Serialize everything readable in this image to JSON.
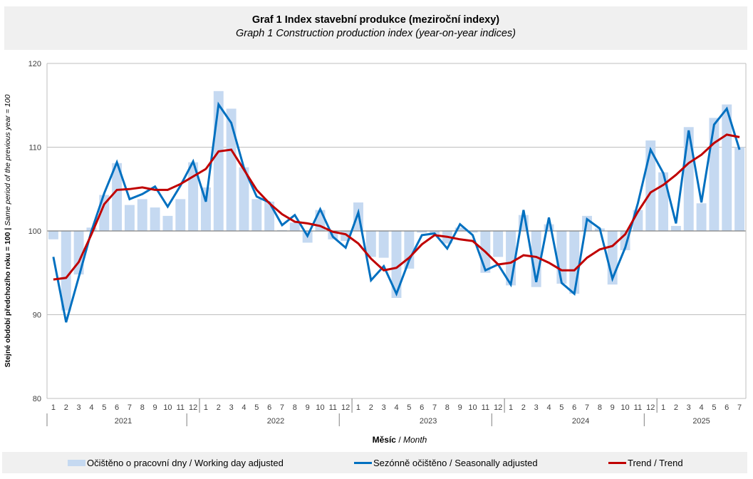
{
  "chart_data": {
    "type": "bar+line",
    "title": "Graf 1 Index stavební produkce (meziroční indexy)",
    "subtitle": "Graph 1 Construction production index (year-on-year indices)",
    "ylabel_cz": "Stejné období předchozího roku = 100 |",
    "ylabel_en": "Same period of  the previous year = 100",
    "xlabel_cz": "Měsíc",
    "xlabel_sep": " / ",
    "xlabel_en": "Month",
    "ylim": [
      80,
      120
    ],
    "yticks": [
      80,
      90,
      100,
      110,
      120
    ],
    "baseline": 100,
    "grid": true,
    "years": [
      {
        "label": "2021",
        "months": 12
      },
      {
        "label": "2022",
        "months": 12
      },
      {
        "label": "2023",
        "months": 12
      },
      {
        "label": "2024",
        "months": 12
      },
      {
        "label": "2025",
        "months": 7
      }
    ],
    "month_labels": [
      "1",
      "2",
      "3",
      "4",
      "5",
      "6",
      "7",
      "8",
      "9",
      "10",
      "11",
      "12",
      "1",
      "2",
      "3",
      "4",
      "5",
      "6",
      "7",
      "8",
      "9",
      "10",
      "11",
      "12",
      "1",
      "2",
      "3",
      "4",
      "5",
      "6",
      "7",
      "8",
      "9",
      "10",
      "11",
      "12",
      "1",
      "2",
      "3",
      "4",
      "5",
      "6",
      "7",
      "8",
      "9",
      "10",
      "11",
      "12",
      "1",
      "2",
      "3",
      "4",
      "5",
      "6",
      "7"
    ],
    "series": [
      {
        "name": "Očištěno o pracovní dny / Working day adjusted",
        "kind": "bar",
        "color": "#c5d9f1",
        "values": [
          99.0,
          90.5,
          94.8,
          100.4,
          104.3,
          108.1,
          103.1,
          103.8,
          102.8,
          101.8,
          103.8,
          108.2,
          105.2,
          116.7,
          114.6,
          107.6,
          103.8,
          103.5,
          100.1,
          101.0,
          98.6,
          102.5,
          99.0,
          98.8,
          103.4,
          96.9,
          96.8,
          92.0,
          95.5,
          99.8,
          99.6,
          98.5,
          100.4,
          99.8,
          95.0,
          96.9,
          93.5,
          101.9,
          93.3,
          100.8,
          93.7,
          92.5,
          101.8,
          100.3,
          93.6,
          97.7,
          102.5,
          110.8,
          107.0,
          100.6,
          112.4,
          103.3,
          113.5,
          115.1,
          110.0
        ]
      },
      {
        "name": "Sezónně očištěno / Seasonally adjusted",
        "kind": "line",
        "color": "#0070c0",
        "values": [
          96.9,
          89.1,
          94.5,
          100.0,
          104.5,
          108.2,
          103.8,
          104.4,
          105.3,
          102.9,
          105.4,
          108.3,
          103.5,
          115.1,
          112.9,
          107.5,
          104.1,
          103.4,
          100.7,
          101.9,
          99.4,
          102.6,
          99.3,
          98.0,
          102.2,
          94.1,
          95.8,
          92.5,
          96.5,
          99.5,
          99.7,
          97.9,
          100.8,
          99.5,
          95.3,
          96.0,
          93.6,
          102.5,
          93.9,
          101.6,
          93.8,
          92.5,
          101.4,
          100.3,
          94.3,
          98.0,
          103.3,
          109.7,
          106.9,
          100.9,
          112.0,
          103.4,
          112.7,
          114.6,
          109.7
        ]
      },
      {
        "name": "Trend / Trend",
        "kind": "line",
        "color": "#c00000",
        "values": [
          94.2,
          94.4,
          96.3,
          99.6,
          103.2,
          104.9,
          105.0,
          105.2,
          104.9,
          104.9,
          105.6,
          106.5,
          107.4,
          109.5,
          109.7,
          107.3,
          104.9,
          103.3,
          102.0,
          101.1,
          100.9,
          100.6,
          99.9,
          99.6,
          98.5,
          96.7,
          95.3,
          95.6,
          96.8,
          98.4,
          99.5,
          99.3,
          99.0,
          98.8,
          97.5,
          96.0,
          96.2,
          97.1,
          96.9,
          96.2,
          95.3,
          95.3,
          96.8,
          97.8,
          98.2,
          99.6,
          102.3,
          104.6,
          105.5,
          106.7,
          108.1,
          109.1,
          110.5,
          111.5,
          111.2
        ]
      }
    ]
  },
  "legend": {
    "items": [
      {
        "label": "Očištěno o pracovní dny / Working day adjusted",
        "color": "#c5d9f1"
      },
      {
        "label": "Sezónně očištěno / Seasonally adjusted",
        "color": "#0070c0"
      },
      {
        "label": "Trend / Trend",
        "color": "#c00000"
      }
    ]
  }
}
